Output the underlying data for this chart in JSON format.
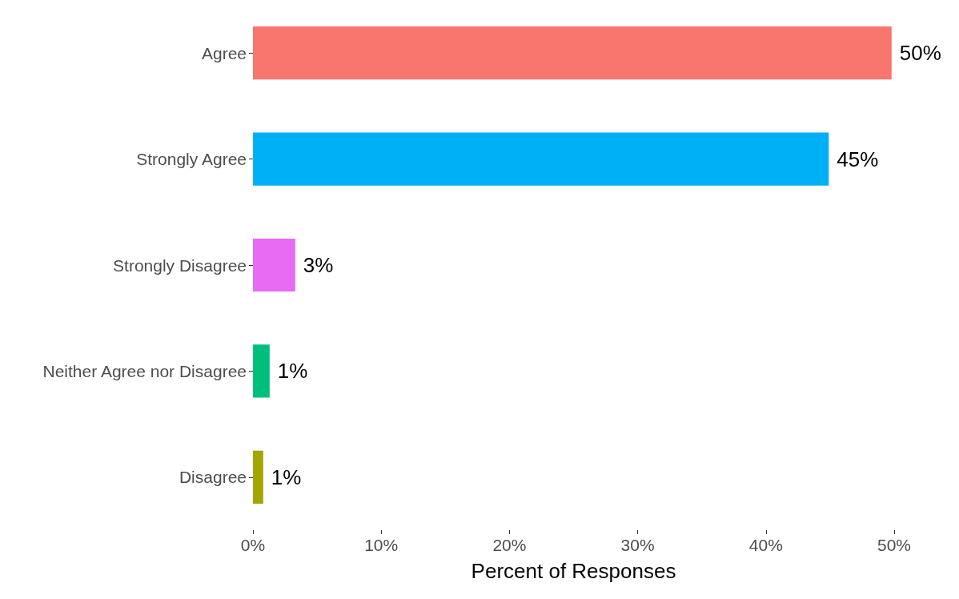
{
  "chart_data": {
    "type": "bar",
    "orientation": "horizontal",
    "xlabel": "Percent of Responses",
    "categories": [
      "Agree",
      "Strongly Agree",
      "Strongly Disagree",
      "Neither Agree nor Disagree",
      "Disagree"
    ],
    "values": [
      49.8,
      44.9,
      3.3,
      1.3,
      0.8
    ],
    "value_labels": [
      "50%",
      "45%",
      "3%",
      "1%",
      "1%"
    ],
    "colors": [
      "#f8766d",
      "#00b0f6",
      "#e76bf3",
      "#00bf7d",
      "#a3a500"
    ],
    "xlim": [
      0,
      50
    ],
    "xticks": [
      {
        "value": 0,
        "label": "0%"
      },
      {
        "value": 10,
        "label": "10%"
      },
      {
        "value": 20,
        "label": "20%"
      },
      {
        "value": 30,
        "label": "30%"
      },
      {
        "value": 40,
        "label": "40%"
      },
      {
        "value": 50,
        "label": "50%"
      }
    ],
    "grid": false
  }
}
